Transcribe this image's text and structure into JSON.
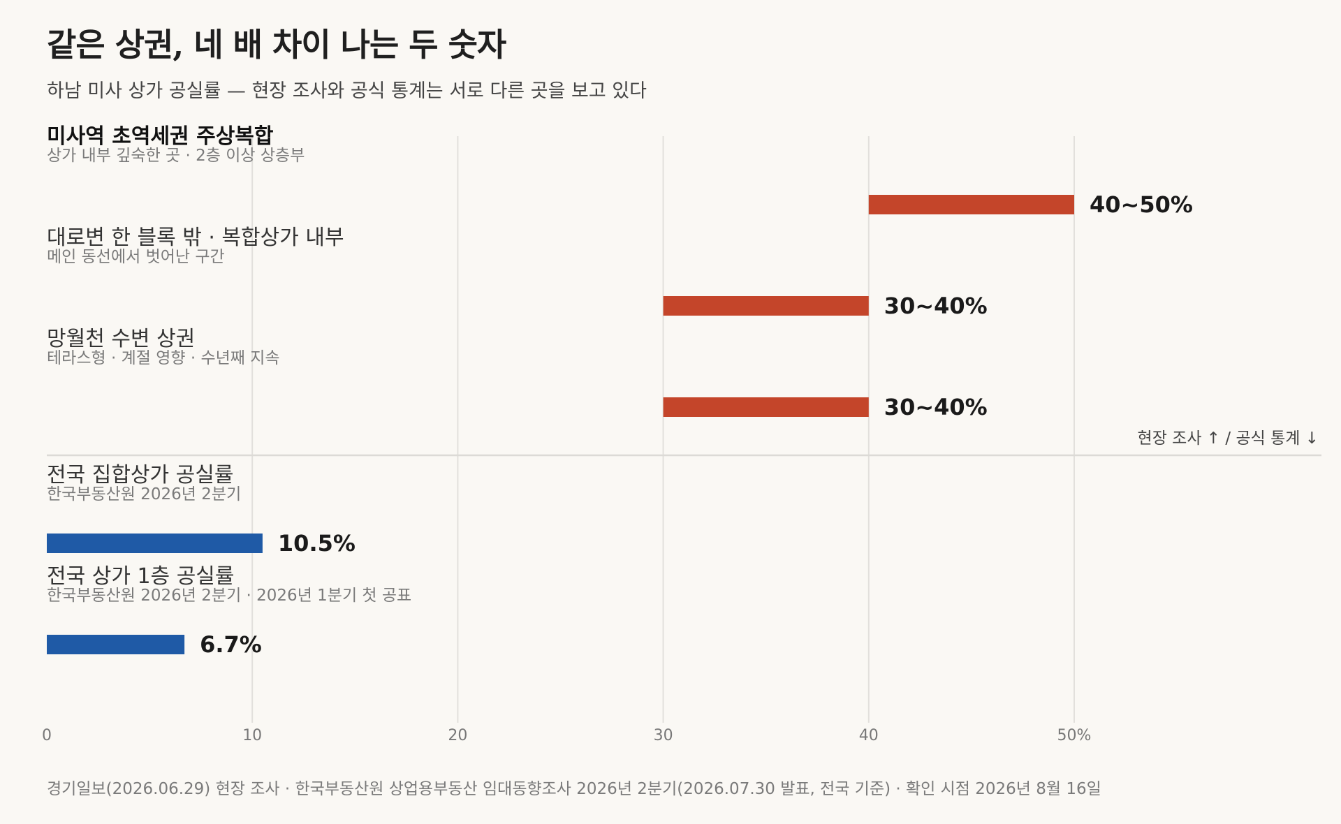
{
  "chart_data": {
    "type": "bar",
    "orientation": "horizontal",
    "title": "같은 상권, 네 배 차이 나는 두 숫자",
    "subtitle": "하남 미사 상가 공실률 — 현장 조사와 공식 통계는 서로 다른 곳을 보고 있다",
    "xlim": [
      0,
      50
    ],
    "xticks": [
      0,
      10,
      20,
      30,
      40,
      50
    ],
    "xtick_labels": [
      "0",
      "10",
      "20",
      "30",
      "40",
      "50%"
    ],
    "grid": "vertical",
    "legend_note": "현장 조사 ↑   /   공식 통계 ↓",
    "groups": [
      {
        "color": "#c4452a",
        "items": [
          {
            "label": "미사역 초역세권 주상복합",
            "sublabel": "상가 내부 깊숙한 곳 · 2층 이상 상층부",
            "low": 40,
            "high": 50,
            "value_label": "40~50%",
            "emphasis": true
          },
          {
            "label": "대로변 한 블록 밖 · 복합상가 내부",
            "sublabel": "메인 동선에서 벗어난 구간",
            "low": 30,
            "high": 40,
            "value_label": "30~40%",
            "emphasis": false
          },
          {
            "label": "망월천 수변 상권",
            "sublabel": "테라스형 · 계절 영향 · 수년째 지속",
            "low": 30,
            "high": 40,
            "value_label": "30~40%",
            "emphasis": false
          }
        ]
      },
      {
        "color": "#1f5aa6",
        "items": [
          {
            "label": "전국 집합상가 공실률",
            "sublabel": "한국부동산원 2026년 2분기",
            "low": 0,
            "high": 10.5,
            "value_label": "10.5%",
            "emphasis": false
          },
          {
            "label": "전국 상가 1층 공실률",
            "sublabel": "한국부동산원 2026년 2분기 · 2026년 1분기 첫 공표",
            "low": 0,
            "high": 6.7,
            "value_label": "6.7%",
            "emphasis": false
          }
        ]
      }
    ]
  },
  "source": "경기일보(2026.06.29) 현장 조사 · 한국부동산원 상업용부동산 임대동향조사 2026년 2분기(2026.07.30 발표, 전국 기준) · 확인 시점 2026년 8월 16일"
}
